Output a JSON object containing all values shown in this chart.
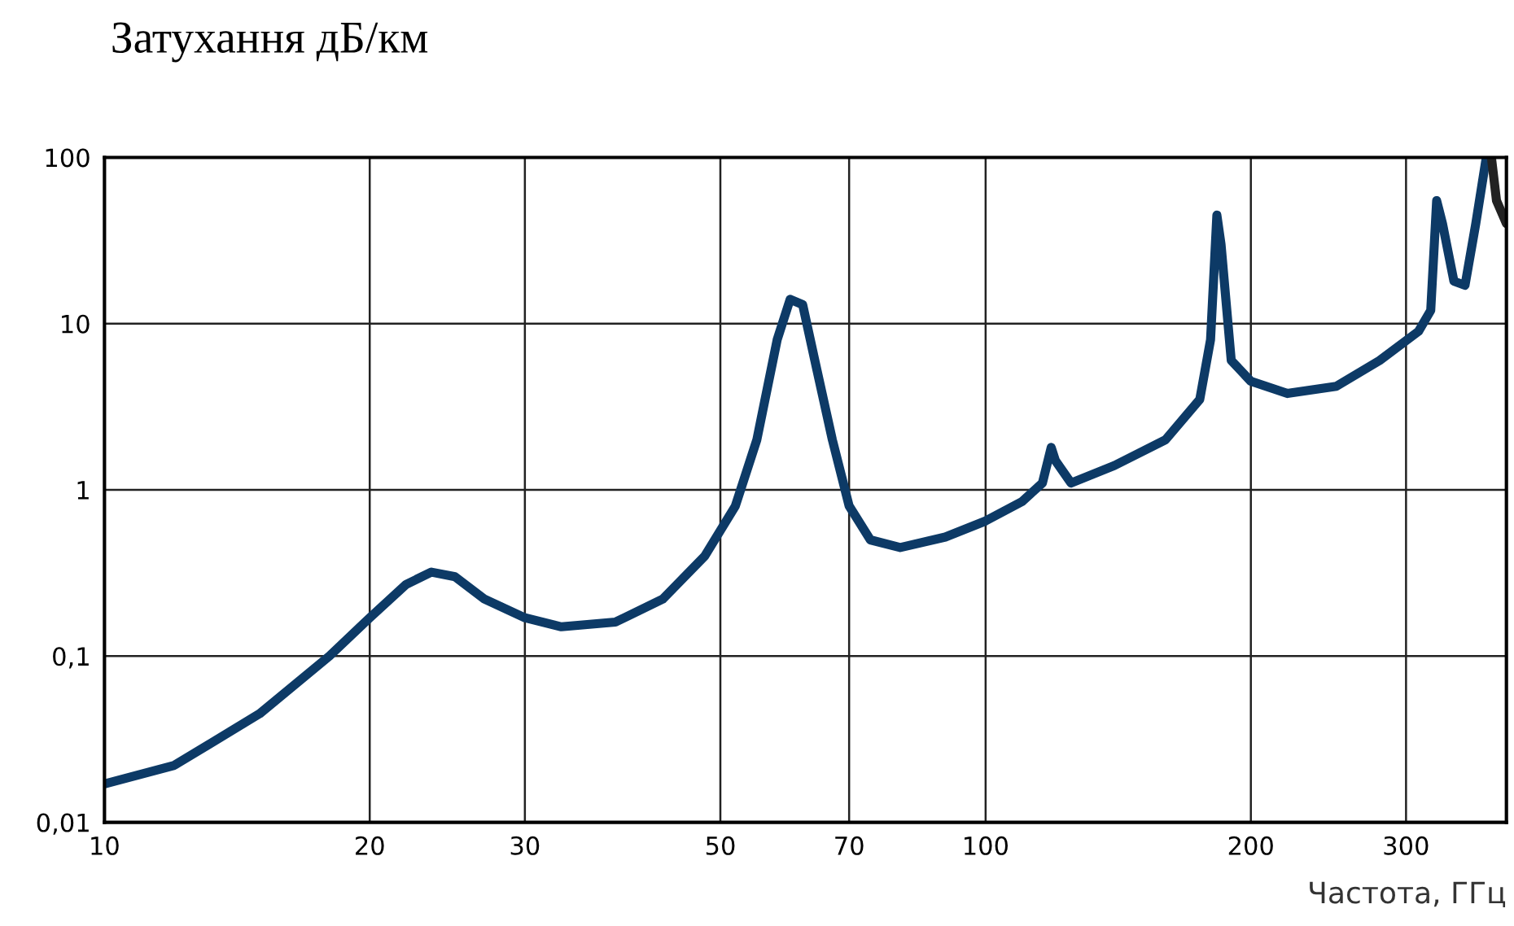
{
  "chart_data": {
    "type": "line",
    "title": "Затухання дБ/км",
    "xlabel": "Частота, ГГц",
    "log": "xy",
    "grid": true,
    "legend": false,
    "marker": "none",
    "line_style": "solid",
    "xlim": [
      10,
      390
    ],
    "xticks": [
      10,
      20,
      30,
      50,
      70,
      100,
      200,
      300
    ],
    "ylim": [
      0.01,
      100
    ],
    "yticks": [
      {
        "value": 0.01,
        "label": "0,01"
      },
      {
        "value": 0.1,
        "label": "0,1"
      },
      1,
      10,
      100
    ],
    "series": [
      {
        "color": "#0d3a66",
        "x": [
          10,
          12,
          15,
          18,
          20,
          22,
          23.5,
          25,
          27,
          30,
          33,
          38,
          43,
          48,
          52,
          55,
          58,
          60,
          62,
          64,
          67,
          70,
          74,
          80,
          90,
          100,
          110,
          116,
          118.7,
          120,
          125,
          140,
          160,
          175,
          180,
          183,
          185,
          190,
          200,
          220,
          250,
          280,
          310,
          320,
          325,
          330,
          340,
          350,
          360,
          370
        ],
        "values": [
          0.017,
          0.022,
          0.045,
          0.1,
          0.17,
          0.27,
          0.32,
          0.3,
          0.22,
          0.17,
          0.15,
          0.16,
          0.22,
          0.4,
          0.8,
          2,
          8,
          14,
          13,
          6,
          2,
          0.8,
          0.5,
          0.45,
          0.52,
          0.65,
          0.85,
          1.1,
          1.8,
          1.5,
          1.1,
          1.4,
          2,
          3.5,
          8,
          45,
          30,
          6,
          4.5,
          3.8,
          4.2,
          6,
          9,
          12,
          55,
          40,
          18,
          17,
          40,
          100
        ]
      },
      {
        "color": "#222222",
        "x": [
          375,
          380,
          390
        ],
        "values": [
          100,
          55,
          40
        ]
      }
    ]
  }
}
